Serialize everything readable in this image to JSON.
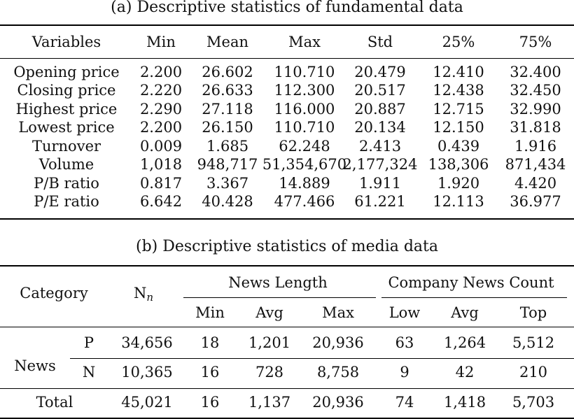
{
  "table_a": {
    "caption": "(a) Descriptive statistics of fundamental data",
    "headers": [
      "Variables",
      "Min",
      "Mean",
      "Max",
      "Std",
      "25%",
      "75%"
    ],
    "rows": [
      [
        "Opening price",
        "2.200",
        "26.602",
        "110.710",
        "20.479",
        "12.410",
        "32.400"
      ],
      [
        "Closing price",
        "2.220",
        "26.633",
        "112.300",
        "20.517",
        "12.438",
        "32.450"
      ],
      [
        "Highest price",
        "2.290",
        "27.118",
        "116.000",
        "20.887",
        "12.715",
        "32.990"
      ],
      [
        "Lowest price",
        "2.200",
        "26.150",
        "110.710",
        "20.134",
        "12.150",
        "31.818"
      ],
      [
        "Turnover",
        "0.009",
        "1.685",
        "62.248",
        "2.413",
        "0.439",
        "1.916"
      ],
      [
        "Volume",
        "1,018",
        "948,717",
        "51,354,670",
        "2,177,324",
        "138,306",
        "871,434"
      ],
      [
        "P/B ratio",
        "0.817",
        "3.367",
        "14.889",
        "1.911",
        "1.920",
        "4.420"
      ],
      [
        "P/E ratio",
        "6.642",
        "40.428",
        "477.466",
        "61.221",
        "12.113",
        "36.977"
      ]
    ]
  },
  "table_b": {
    "caption": "(b) Descriptive statistics of media data",
    "category_header": "Category",
    "n_header": "N",
    "n_sub": "n",
    "group_news_length": "News Length",
    "group_company_news": "Company News Count",
    "sub_headers": [
      "Min",
      "Avg",
      "Max",
      "Low",
      "Avg",
      "Top"
    ],
    "news_label": "News",
    "rows": [
      {
        "label": "P",
        "values": [
          "34,656",
          "18",
          "1,201",
          "20,936",
          "63",
          "1,264",
          "5,512"
        ]
      },
      {
        "label": "N",
        "values": [
          "10,365",
          "16",
          "728",
          "8,758",
          "9",
          "42",
          "210"
        ]
      }
    ],
    "total": {
      "label": "Total",
      "values": [
        "45,021",
        "16",
        "1,137",
        "20,936",
        "74",
        "1,418",
        "5,703"
      ]
    }
  }
}
